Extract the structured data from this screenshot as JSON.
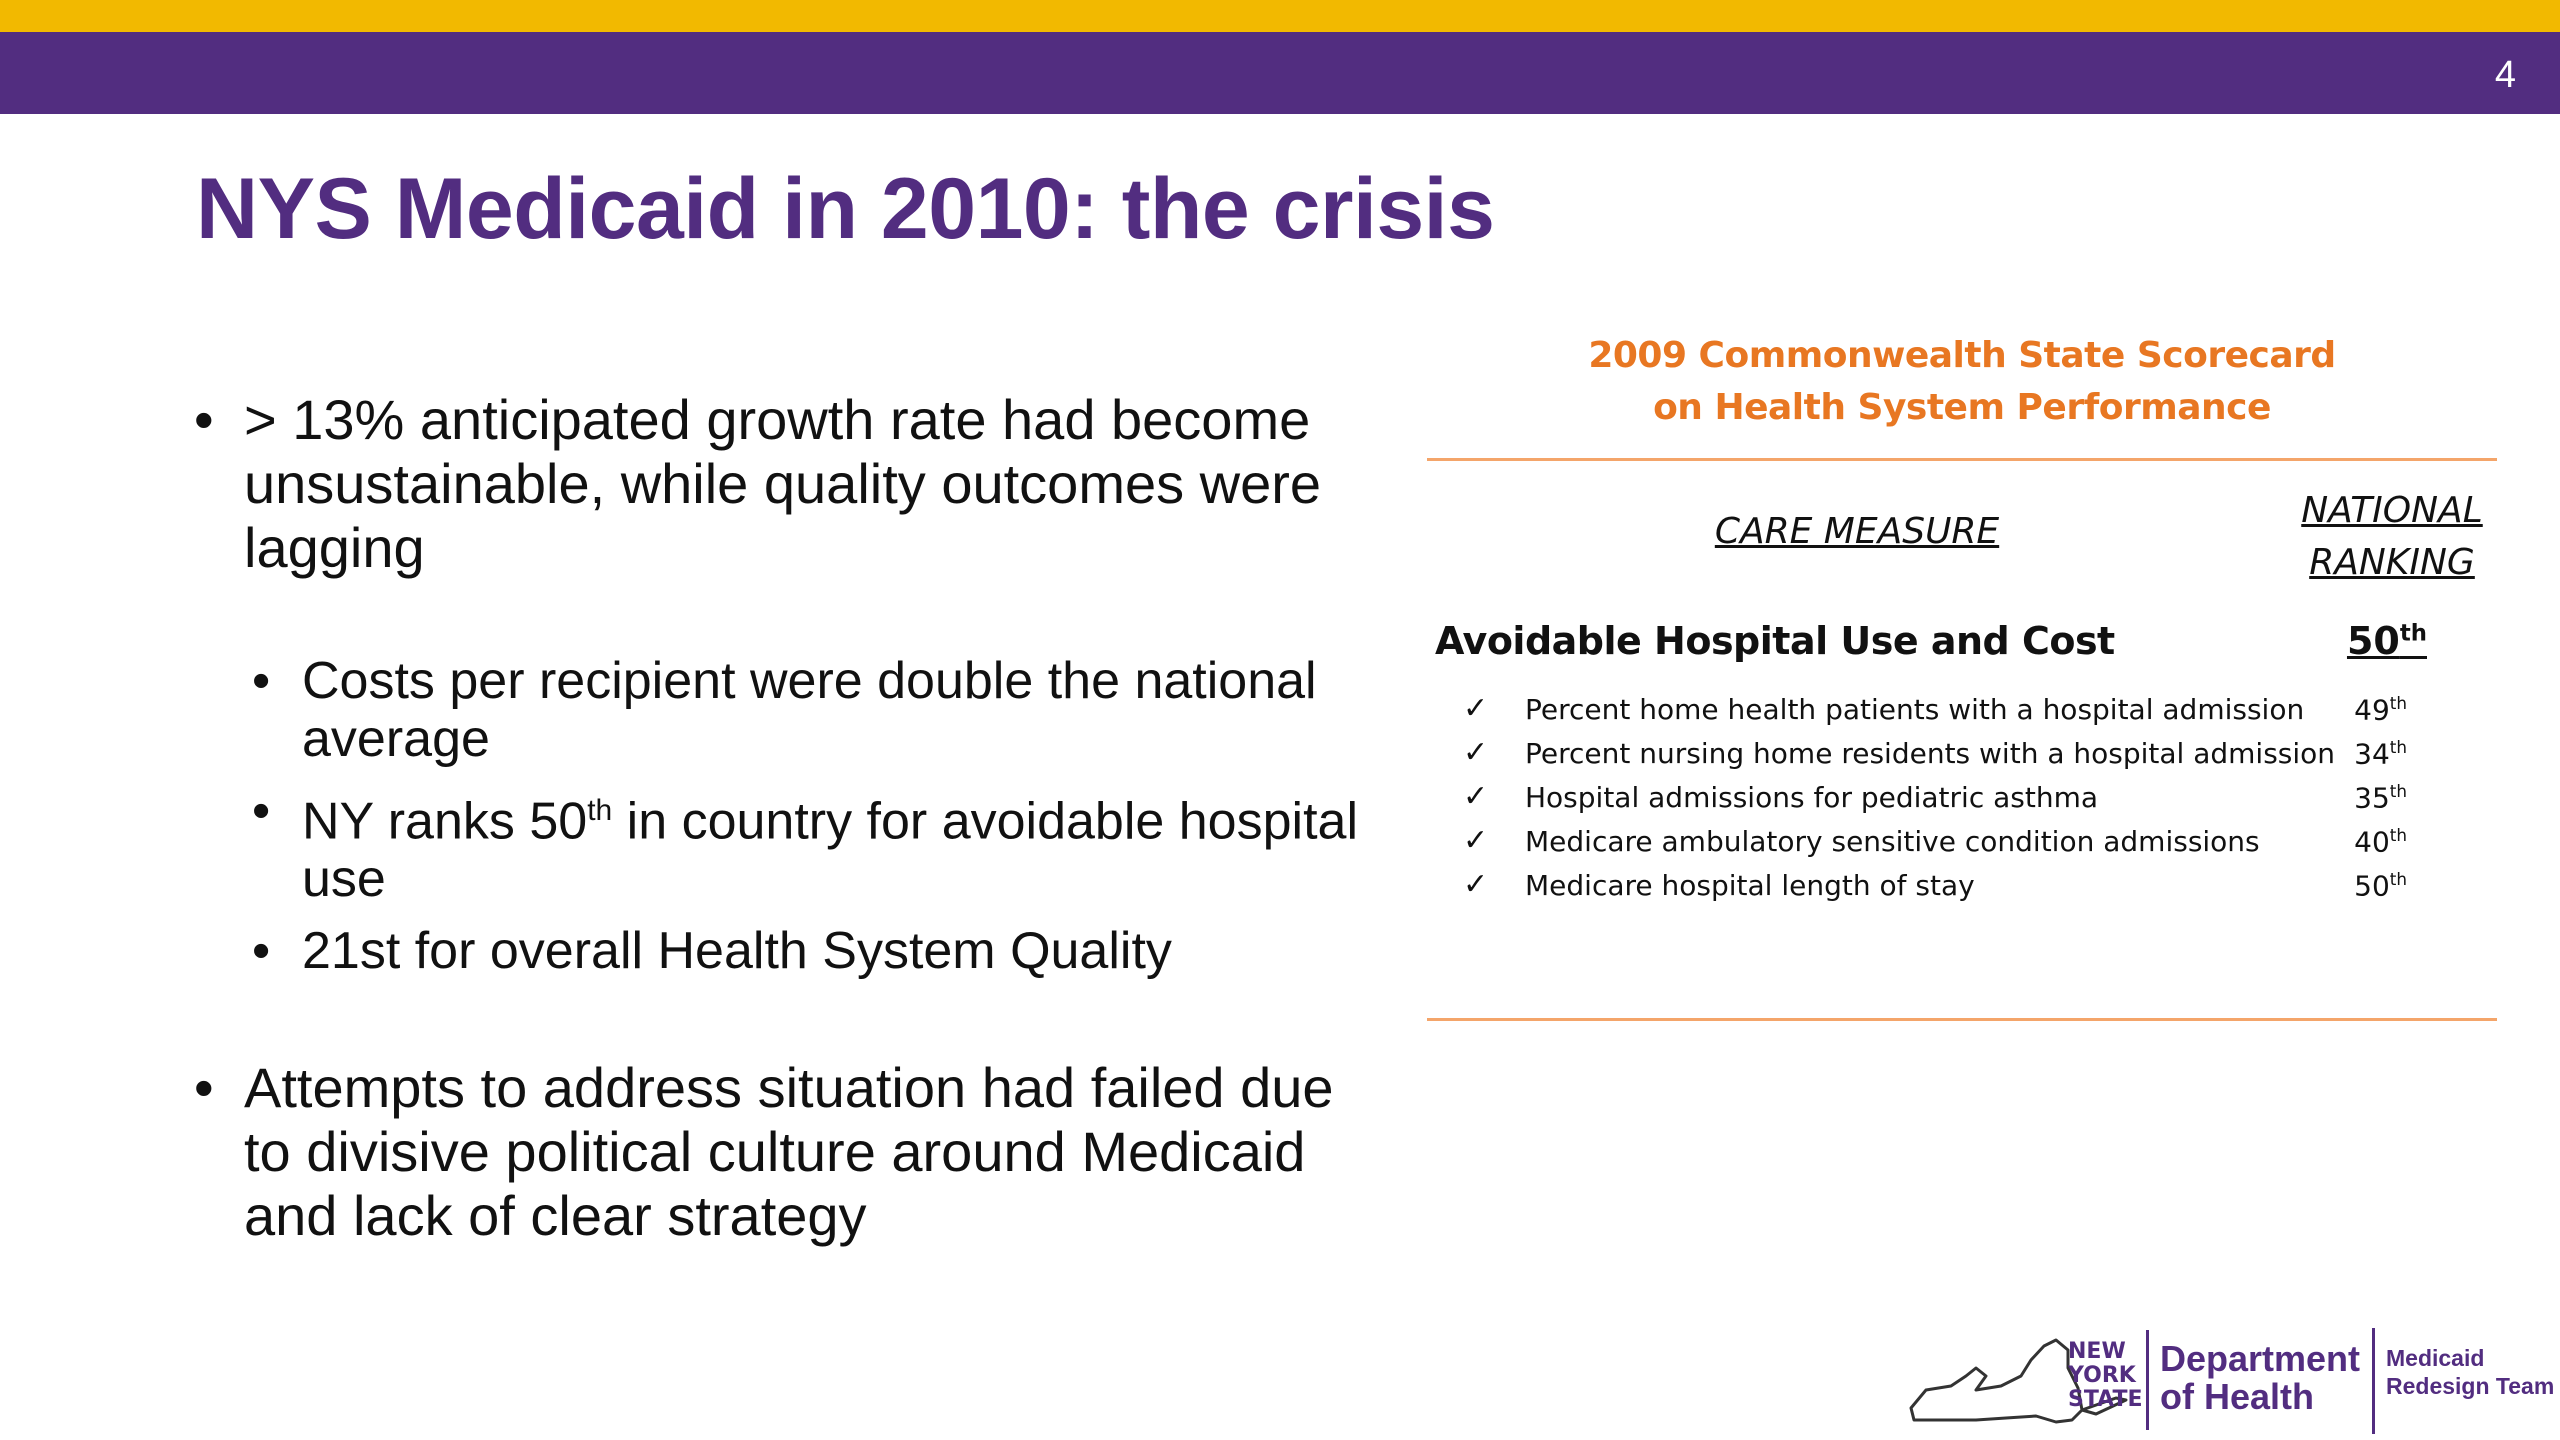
{
  "header": {
    "page_number": "4",
    "gold_color": "#F2B900",
    "purple_color": "#522D80"
  },
  "title": "NYS Medicaid in 2010: the crisis",
  "bullets": {
    "first": "> 13% anticipated growth rate had become unsustainable, while quality outcomes were lagging",
    "sub": {
      "costs": "Costs per recipient were double the national average",
      "rank_pre": "NY ranks 50",
      "rank_sup": "th",
      "rank_post": " in country for avoidable hospital use",
      "quality": "21st for overall Health System Quality"
    },
    "last": "Attempts to address situation had failed due to divisive political culture around Medicaid and lack of clear strategy"
  },
  "scorecard": {
    "title_line1": "2009 Commonwealth State Scorecard",
    "title_line2": "on Health System Performance",
    "col_measure": "CARE MEASURE",
    "col_ranking_line1": "NATIONAL",
    "col_ranking_line2": "RANKING",
    "category": "Avoidable Hospital Use and Cost",
    "category_rank": "50",
    "category_rank_sup": "th",
    "check_symbol": "✓",
    "measures": [
      {
        "label": "Percent home health patients with a hospital admission",
        "rank": "49",
        "sup": "th"
      },
      {
        "label": "Percent nursing home residents with a hospital admission",
        "rank": "34",
        "sup": "th"
      },
      {
        "label": "Hospital admissions for pediatric asthma",
        "rank": "35",
        "sup": "th"
      },
      {
        "label": "Medicare ambulatory sensitive condition admissions",
        "rank": "40",
        "sup": "th"
      },
      {
        "label": "Medicare hospital length of stay",
        "rank": "50",
        "sup": "th"
      }
    ],
    "accent_color": "#E87722"
  },
  "footer": {
    "state_line1": "NEW",
    "state_line2": "YORK",
    "state_line3": "STATE",
    "dept_line1": "Department",
    "dept_line2": "of Health",
    "team_line1": "Medicaid",
    "team_line2": "Redesign Team"
  }
}
